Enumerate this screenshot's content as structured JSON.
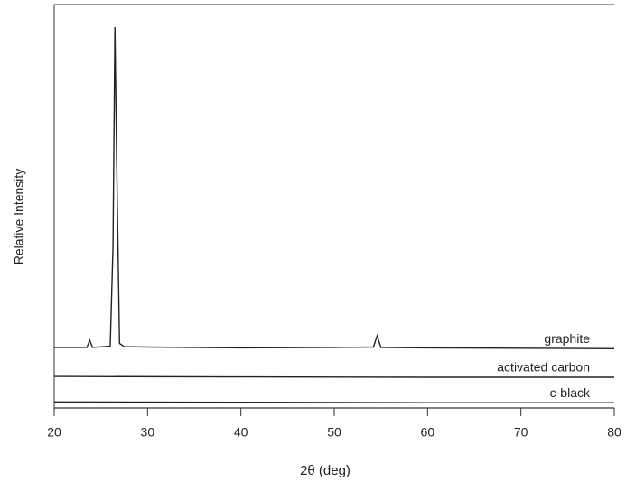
{
  "chart_data": {
    "type": "line",
    "x_label": "2θ (deg)",
    "y_label": "Relative Intensity",
    "xlim": [
      20,
      80
    ],
    "xticks": [
      20,
      30,
      40,
      50,
      60,
      70,
      80
    ],
    "ylim": [
      0,
      100
    ],
    "series": [
      {
        "name": "graphite",
        "color": "#222222",
        "x": [
          20,
          23.5,
          23.8,
          24.1,
          26,
          26.3,
          26.5,
          26.7,
          27,
          27.5,
          30,
          40,
          50,
          54.2,
          54.6,
          55,
          60,
          70,
          80
        ],
        "values": [
          15,
          15,
          16.8,
          15,
          15.3,
          40,
          94.4,
          60,
          16,
          15.2,
          15.1,
          14.9,
          15,
          15.1,
          17.9,
          15,
          14.9,
          14.8,
          14.7
        ]
      },
      {
        "name": "activated carbon",
        "color": "#222222",
        "x": [
          20,
          40,
          60,
          80
        ],
        "values": [
          7.8,
          7.7,
          7.6,
          7.6
        ]
      },
      {
        "name": "c-black",
        "color": "#222222",
        "x": [
          20,
          40,
          60,
          80
        ],
        "values": [
          1.5,
          1.4,
          1.3,
          1.3
        ]
      }
    ]
  }
}
